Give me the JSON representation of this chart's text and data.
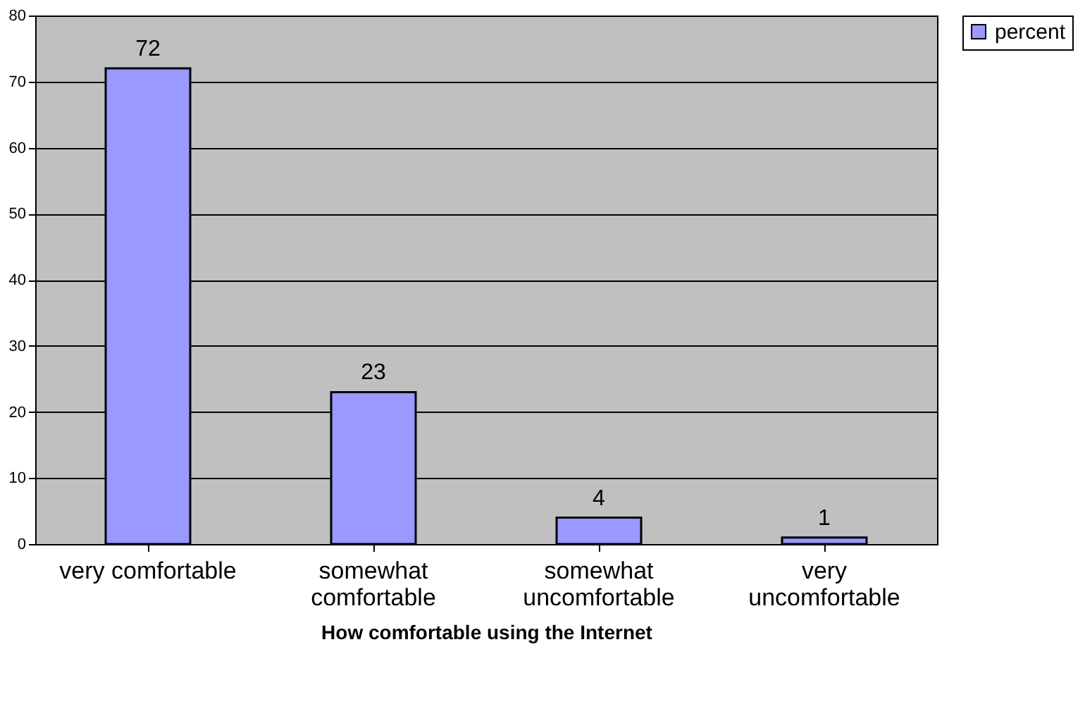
{
  "chart_data": {
    "type": "bar",
    "xlabel": "How comfortable using the Internet",
    "categories": [
      "very comfortable",
      "somewhat comfortable",
      "somewhat uncomfortable",
      "very uncomfortable"
    ],
    "series": [
      {
        "name": "percent",
        "color": "#9999ff",
        "values": [
          72,
          23,
          4,
          1
        ]
      }
    ],
    "ylim": [
      0,
      80
    ],
    "yticks": [
      0,
      10,
      20,
      30,
      40,
      50,
      60,
      70,
      80
    ],
    "grid": "y",
    "legend": "right",
    "data_labels": true
  }
}
